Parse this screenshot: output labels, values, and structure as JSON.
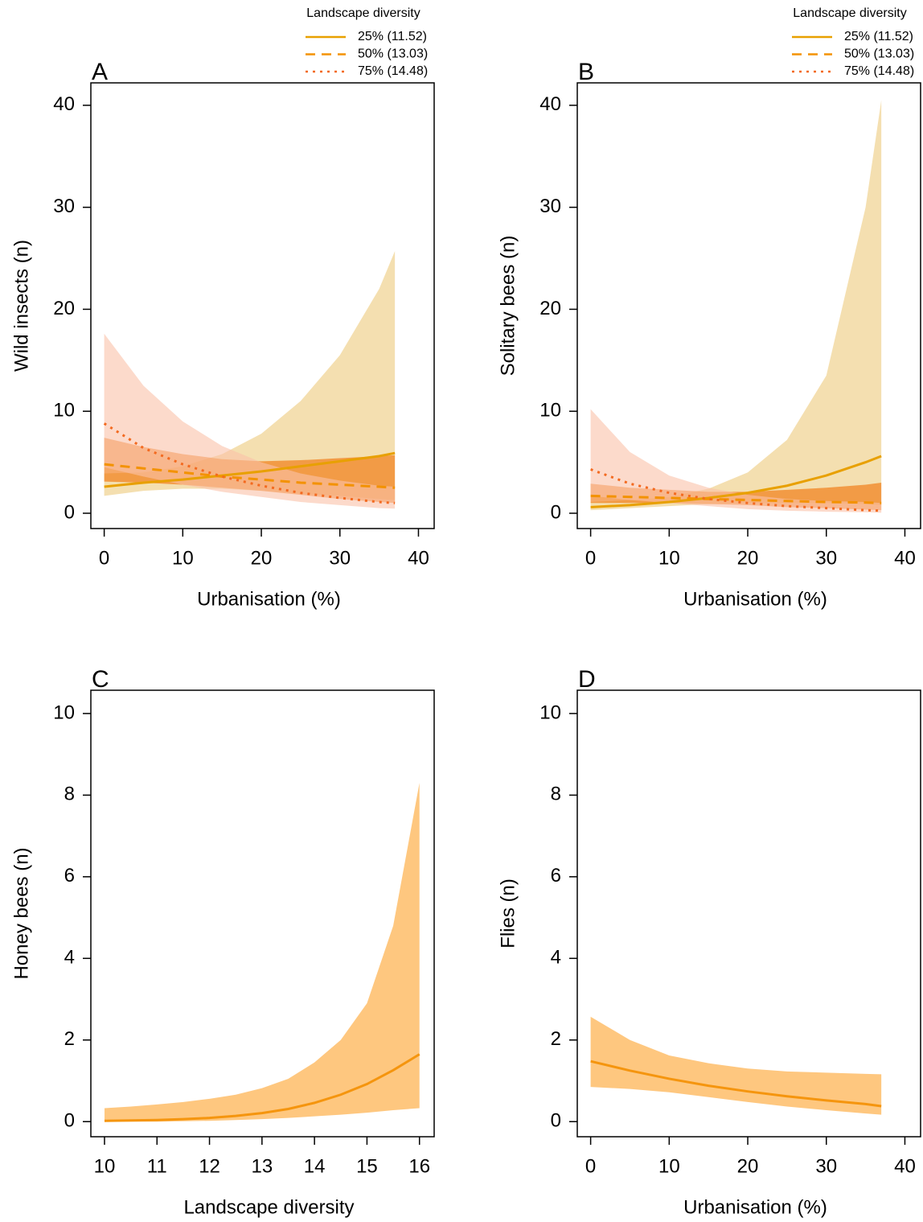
{
  "chart_data": [
    {
      "type": "line",
      "panel_label": "A",
      "x_label": "Urbanisation (%)",
      "y_label": "Wild insects (n)",
      "legend_title": "Landscape diversity",
      "legend": "top-right",
      "x": [
        0,
        5,
        10,
        15,
        20,
        25,
        30,
        35,
        37
      ],
      "xlim": [
        -1.7,
        42
      ],
      "ylim": [
        -1.5,
        42.2
      ],
      "xticks": [
        0,
        10,
        20,
        30,
        40
      ],
      "yticks": [
        0,
        10,
        20,
        30,
        40
      ],
      "series": [
        {
          "name": "25% (11.52)",
          "color": "#e8a000",
          "linestyle": "solid",
          "band_color": "#edca7b",
          "values": [
            2.6,
            3.0,
            3.3,
            3.7,
            4.1,
            4.6,
            5.1,
            5.6,
            5.9
          ],
          "lower": [
            1.7,
            2.2,
            2.4,
            2.4,
            2.2,
            1.9,
            1.7,
            1.4,
            1.3
          ],
          "upper": [
            3.9,
            4.0,
            4.6,
            5.8,
            7.8,
            11,
            15.5,
            22,
            25.7
          ]
        },
        {
          "name": "50% (13.03)",
          "color": "#f39200",
          "linestyle": "dashed",
          "band_color": "#f06e00",
          "values": [
            4.8,
            4.4,
            4.0,
            3.6,
            3.3,
            3.0,
            2.8,
            2.6,
            2.5
          ],
          "lower": [
            3.1,
            3.0,
            2.8,
            2.5,
            2.2,
            1.8,
            1.4,
            1.1,
            1.0
          ],
          "upper": [
            7.4,
            6.5,
            5.8,
            5.3,
            5.1,
            5.2,
            5.4,
            5.6,
            5.7
          ]
        },
        {
          "name": "75% (14.48)",
          "color": "#f36a20",
          "linestyle": "dotted",
          "band_color": "#fac1a8",
          "values": [
            8.8,
            6.4,
            4.8,
            3.6,
            2.7,
            2.0,
            1.5,
            1.1,
            1.0
          ],
          "lower": [
            4.5,
            3.6,
            2.8,
            2.1,
            1.6,
            1.1,
            0.8,
            0.5,
            0.45
          ],
          "upper": [
            17.6,
            12.5,
            9.0,
            6.6,
            5.0,
            3.9,
            3.2,
            2.7,
            2.6
          ]
        }
      ]
    },
    {
      "type": "line",
      "panel_label": "B",
      "x_label": "Urbanisation (%)",
      "y_label": "Solitary bees (n)",
      "legend_title": "Landscape diversity",
      "legend": "top-right",
      "x": [
        0,
        5,
        10,
        15,
        20,
        25,
        30,
        35,
        37
      ],
      "xlim": [
        -1.7,
        42
      ],
      "ylim": [
        -1.5,
        42.2
      ],
      "xticks": [
        0,
        10,
        20,
        30,
        40
      ],
      "yticks": [
        0,
        10,
        20,
        30,
        40
      ],
      "series": [
        {
          "name": "25% (11.52)",
          "color": "#e8a000",
          "linestyle": "solid",
          "band_color": "#edca7b",
          "values": [
            0.6,
            0.8,
            1.1,
            1.5,
            2.0,
            2.7,
            3.7,
            5.0,
            5.6
          ],
          "lower": [
            0.3,
            0.5,
            0.7,
            0.9,
            1.0,
            1.0,
            1.0,
            0.9,
            0.8
          ],
          "upper": [
            1.1,
            1.3,
            1.6,
            2.4,
            4.0,
            7.2,
            13.5,
            30,
            40.5
          ]
        },
        {
          "name": "50% (13.03)",
          "color": "#f39200",
          "linestyle": "dashed",
          "band_color": "#f06e00",
          "values": [
            1.7,
            1.6,
            1.5,
            1.4,
            1.3,
            1.2,
            1.1,
            1.05,
            1.0
          ],
          "lower": [
            1.0,
            1.0,
            1.0,
            0.9,
            0.8,
            0.6,
            0.5,
            0.35,
            0.3
          ],
          "upper": [
            2.9,
            2.5,
            2.3,
            2.1,
            2.1,
            2.3,
            2.5,
            2.8,
            3.0
          ]
        },
        {
          "name": "75% (14.48)",
          "color": "#f36a20",
          "linestyle": "dotted",
          "band_color": "#fac1a8",
          "values": [
            4.3,
            2.9,
            2.0,
            1.4,
            1.0,
            0.7,
            0.5,
            0.3,
            0.25
          ],
          "lower": [
            1.7,
            1.3,
            1.0,
            0.7,
            0.4,
            0.25,
            0.15,
            0.1,
            0.05
          ],
          "upper": [
            10.2,
            6.0,
            3.7,
            2.5,
            1.8,
            1.4,
            1.2,
            1.1,
            1.0
          ]
        }
      ]
    },
    {
      "type": "line",
      "panel_label": "C",
      "x_label": "Landscape diversity",
      "y_label": "Honey bees (n)",
      "x": [
        10,
        10.5,
        11,
        11.5,
        12,
        12.5,
        13,
        13.5,
        14,
        14.5,
        15,
        15.5,
        16
      ],
      "xlim": [
        9.74,
        16.28
      ],
      "ylim": [
        -0.37,
        10.57
      ],
      "xticks": [
        10,
        11,
        12,
        13,
        14,
        15,
        16
      ],
      "yticks": [
        0,
        2,
        4,
        6,
        8,
        10
      ],
      "series": [
        {
          "color": "#f5950e",
          "linestyle": "solid",
          "band_color": "#fda22a",
          "values": [
            0.02,
            0.03,
            0.04,
            0.06,
            0.09,
            0.14,
            0.21,
            0.31,
            0.46,
            0.66,
            0.92,
            1.26,
            1.65
          ],
          "lower": [
            0,
            0,
            0,
            0.01,
            0.02,
            0.04,
            0.06,
            0.09,
            0.13,
            0.17,
            0.22,
            0.28,
            0.33
          ],
          "upper": [
            0.33,
            0.37,
            0.42,
            0.48,
            0.56,
            0.66,
            0.82,
            1.05,
            1.45,
            2.0,
            2.9,
            4.8,
            8.3
          ]
        }
      ]
    },
    {
      "type": "line",
      "panel_label": "D",
      "x_label": "Urbanisation (%)",
      "y_label": "Flies (n)",
      "x": [
        0,
        5,
        10,
        15,
        20,
        25,
        30,
        35,
        37
      ],
      "xlim": [
        -1.7,
        42
      ],
      "ylim": [
        -0.37,
        10.57
      ],
      "xticks": [
        0,
        10,
        20,
        30,
        40
      ],
      "yticks": [
        0,
        2,
        4,
        6,
        8,
        10
      ],
      "series": [
        {
          "color": "#f5950e",
          "linestyle": "solid",
          "band_color": "#fda22a",
          "values": [
            1.48,
            1.25,
            1.05,
            0.88,
            0.74,
            0.62,
            0.52,
            0.43,
            0.38
          ],
          "lower": [
            0.85,
            0.8,
            0.72,
            0.6,
            0.48,
            0.37,
            0.28,
            0.2,
            0.17
          ],
          "upper": [
            2.57,
            2.0,
            1.62,
            1.43,
            1.3,
            1.23,
            1.2,
            1.17,
            1.16
          ]
        }
      ]
    }
  ]
}
